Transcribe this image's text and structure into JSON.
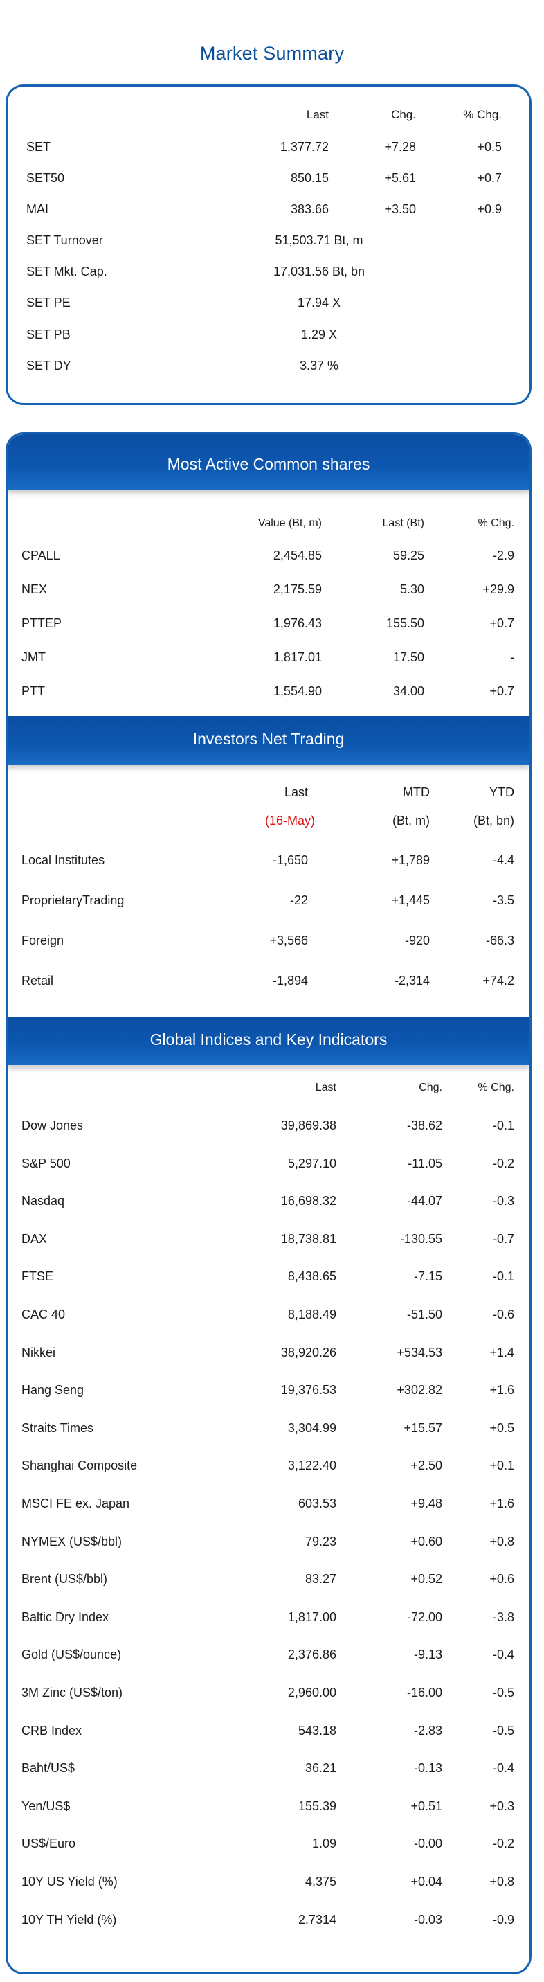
{
  "title": "Market Summary",
  "summary": {
    "headers": {
      "last": "Last",
      "chg": "Chg.",
      "pct": "% Chg."
    },
    "rows": [
      {
        "label": "SET",
        "last": "1,377.72",
        "chg": "+7.28",
        "pct": "+0.5"
      },
      {
        "label": "SET50",
        "last": "850.15",
        "chg": "+5.61",
        "pct": "+0.7"
      },
      {
        "label": "MAI",
        "last": "383.66",
        "chg": "+3.50",
        "pct": "+0.9"
      }
    ],
    "stats": [
      {
        "label": "SET Turnover",
        "value": "51,503.71 Bt, m"
      },
      {
        "label": "SET Mkt. Cap.",
        "value": "17,031.56 Bt, bn"
      },
      {
        "label": "SET PE",
        "value": "17.94 X"
      },
      {
        "label": "SET PB",
        "value": "1.29 X"
      },
      {
        "label": "SET DY",
        "value": "3.37 %"
      }
    ]
  },
  "active": {
    "title": "Most Active Common shares",
    "headers": {
      "value": "Value (Bt, m)",
      "last": "Last (Bt)",
      "pct": "% Chg."
    },
    "rows": [
      {
        "name": "CPALL",
        "value": "2,454.85",
        "last": "59.25",
        "pct": "-2.9"
      },
      {
        "name": "NEX",
        "value": "2,175.59",
        "last": "5.30",
        "pct": "+29.9"
      },
      {
        "name": "PTTEP",
        "value": "1,976.43",
        "last": "155.50",
        "pct": "+0.7"
      },
      {
        "name": "JMT",
        "value": "1,817.01",
        "last": "17.50",
        "pct": "-"
      },
      {
        "name": "PTT",
        "value": "1,554.90",
        "last": "34.00",
        "pct": "+0.7"
      }
    ]
  },
  "investors": {
    "title": "Investors Net Trading",
    "headers": {
      "last": "Last",
      "mtd": "MTD",
      "ytd": "YTD"
    },
    "subheaders": {
      "last": "(16-May)",
      "mtd": "(Bt, m)",
      "ytd": "(Bt, bn)"
    },
    "rows": [
      {
        "name": "Local Institutes",
        "last": "-1,650",
        "mtd": "+1,789",
        "ytd": "-4.4"
      },
      {
        "name": "ProprietaryTrading",
        "last": "-22",
        "mtd": "+1,445",
        "ytd": "-3.5"
      },
      {
        "name": "Foreign",
        "last": "+3,566",
        "mtd": "-920",
        "ytd": "-66.3"
      },
      {
        "name": "Retail",
        "last": "-1,894",
        "mtd": "-2,314",
        "ytd": "+74.2"
      }
    ]
  },
  "global": {
    "title": "Global Indices and Key Indicators",
    "headers": {
      "last": "Last",
      "chg": "Chg.",
      "pct": "% Chg."
    },
    "rows": [
      {
        "name": "Dow Jones",
        "last": "39,869.38",
        "chg": "-38.62",
        "pct": "-0.1"
      },
      {
        "name": "S&P 500",
        "last": "5,297.10",
        "chg": "-11.05",
        "pct": "-0.2"
      },
      {
        "name": "Nasdaq",
        "last": "16,698.32",
        "chg": "-44.07",
        "pct": "-0.3"
      },
      {
        "name": "DAX",
        "last": "18,738.81",
        "chg": "-130.55",
        "pct": "-0.7"
      },
      {
        "name": "FTSE",
        "last": "8,438.65",
        "chg": "-7.15",
        "pct": "-0.1"
      },
      {
        "name": "CAC 40",
        "last": "8,188.49",
        "chg": "-51.50",
        "pct": "-0.6"
      },
      {
        "name": "Nikkei",
        "last": "38,920.26",
        "chg": "+534.53",
        "pct": "+1.4"
      },
      {
        "name": "Hang Seng",
        "last": "19,376.53",
        "chg": "+302.82",
        "pct": "+1.6"
      },
      {
        "name": "Straits Times",
        "last": "3,304.99",
        "chg": "+15.57",
        "pct": "+0.5"
      },
      {
        "name": "Shanghai Composite",
        "last": "3,122.40",
        "chg": "+2.50",
        "pct": "+0.1"
      },
      {
        "name": "MSCI FE ex. Japan",
        "last": "603.53",
        "chg": "+9.48",
        "pct": "+1.6"
      },
      {
        "name": "NYMEX (US$/bbl)",
        "last": "79.23",
        "chg": "+0.60",
        "pct": "+0.8"
      },
      {
        "name": "Brent (US$/bbl)",
        "last": "83.27",
        "chg": "+0.52",
        "pct": "+0.6"
      },
      {
        "name": "Baltic Dry Index",
        "last": "1,817.00",
        "chg": "-72.00",
        "pct": "-3.8"
      },
      {
        "name": "Gold (US$/ounce)",
        "last": "2,376.86",
        "chg": "-9.13",
        "pct": "-0.4"
      },
      {
        "name": "3M Zinc (US$/ton)",
        "last": "2,960.00",
        "chg": "-16.00",
        "pct": "-0.5"
      },
      {
        "name": "CRB Index",
        "last": "543.18",
        "chg": "-2.83",
        "pct": "-0.5"
      },
      {
        "name": "Baht/US$",
        "last": "36.21",
        "chg": "-0.13",
        "pct": "-0.4"
      },
      {
        "name": "Yen/US$",
        "last": "155.39",
        "chg": "+0.51",
        "pct": "+0.3"
      },
      {
        "name": "US$/Euro",
        "last": "1.09",
        "chg": "-0.00",
        "pct": "-0.2"
      },
      {
        "name": "10Y US Yield (%)",
        "last": "4.375",
        "chg": "+0.04",
        "pct": "+0.8"
      },
      {
        "name": "10Y TH Yield (%)",
        "last": "2.7314",
        "chg": "-0.03",
        "pct": "-0.9"
      }
    ]
  }
}
